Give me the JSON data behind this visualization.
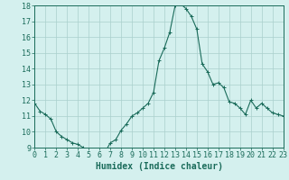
{
  "x_values": [
    0,
    0.5,
    1,
    1.5,
    2,
    2.5,
    3,
    3.5,
    4,
    4.5,
    5,
    5.5,
    6,
    6.5,
    7,
    7.5,
    8,
    8.5,
    9,
    9.5,
    10,
    10.5,
    11,
    11.5,
    12,
    12.5,
    13,
    13.5,
    14,
    14.5,
    15,
    15.5,
    16,
    16.5,
    17,
    17.5,
    18,
    18.5,
    19,
    19.5,
    20,
    20.5,
    21,
    21.5,
    22,
    22.5,
    23
  ],
  "y_values": [
    11.8,
    11.3,
    11.1,
    10.8,
    10.0,
    9.7,
    9.5,
    9.3,
    9.2,
    9.0,
    8.8,
    8.8,
    8.7,
    8.7,
    9.3,
    9.5,
    10.1,
    10.5,
    11.0,
    11.2,
    11.5,
    11.8,
    12.5,
    14.5,
    15.3,
    16.3,
    18.0,
    18.1,
    17.8,
    17.3,
    16.5,
    14.3,
    13.8,
    13.0,
    13.1,
    12.8,
    11.9,
    11.8,
    11.5,
    11.1,
    12.0,
    11.5,
    11.8,
    11.5,
    11.2,
    11.1,
    11.0
  ],
  "line_color": "#1a6b5a",
  "marker": "+",
  "marker_size": 3,
  "background_color": "#d4f0ee",
  "grid_color": "#aacfcc",
  "xlabel": "Humidex (Indice chaleur)",
  "xlabel_fontsize": 7,
  "tick_label_fontsize": 6,
  "ylim": [
    9,
    18
  ],
  "xlim": [
    0,
    23
  ],
  "yticks": [
    9,
    10,
    11,
    12,
    13,
    14,
    15,
    16,
    17,
    18
  ],
  "xticks": [
    0,
    1,
    2,
    3,
    4,
    5,
    6,
    7,
    8,
    9,
    10,
    11,
    12,
    13,
    14,
    15,
    16,
    17,
    18,
    19,
    20,
    21,
    22,
    23
  ]
}
